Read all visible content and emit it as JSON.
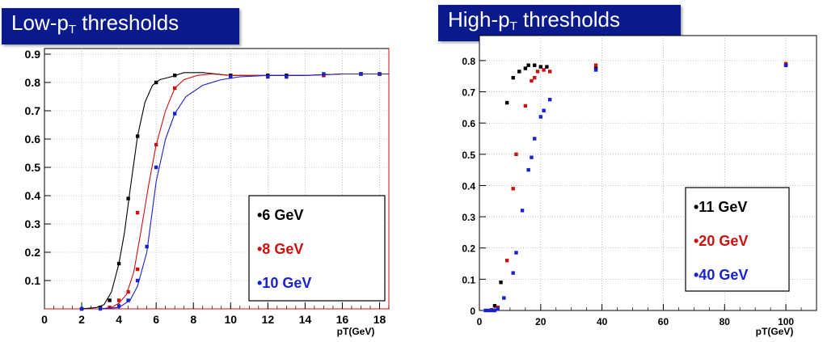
{
  "colors": {
    "title_bg": "#0a1a8c",
    "black": "#000000",
    "red": "#cc1111",
    "blue": "#1a22cc"
  },
  "chart_data": [
    {
      "type": "line",
      "title_main": "Low-p",
      "title_sub": "T",
      "title_rest": " thresholds",
      "xlabel": "pT(GeV)",
      "ylabel": "",
      "xlim": [
        0,
        18.5
      ],
      "ylim": [
        0,
        0.92
      ],
      "xticks": [
        "0",
        "2",
        "4",
        "6",
        "8",
        "10",
        "12",
        "14",
        "16",
        "18"
      ],
      "yticks": [
        "0.1",
        "0.2",
        "0.3",
        "0.4",
        "0.5",
        "0.6",
        "0.7",
        "0.8",
        "0.9"
      ],
      "grid": true,
      "legend_position": "right-middle",
      "series": [
        {
          "name": "•6 GeV",
          "color": "#000000",
          "points": [
            [
              2,
              0
            ],
            [
              3,
              0.005
            ],
            [
              3.5,
              0.03
            ],
            [
              4,
              0.16
            ],
            [
              4.5,
              0.39
            ],
            [
              5,
              0.61
            ],
            [
              6,
              0.8
            ],
            [
              7,
              0.825
            ],
            [
              10,
              0.825
            ],
            [
              12,
              0.825
            ],
            [
              13,
              0.825
            ],
            [
              15,
              0.825
            ],
            [
              17,
              0.83
            ],
            [
              18,
              0.83
            ]
          ],
          "curve": [
            [
              2,
              0
            ],
            [
              2.8,
              0.005
            ],
            [
              3.2,
              0.015
            ],
            [
              3.6,
              0.06
            ],
            [
              4,
              0.16
            ],
            [
              4.3,
              0.27
            ],
            [
              4.6,
              0.42
            ],
            [
              5,
              0.61
            ],
            [
              5.4,
              0.73
            ],
            [
              5.8,
              0.79
            ],
            [
              6.2,
              0.81
            ],
            [
              6.8,
              0.82
            ],
            [
              7.5,
              0.835
            ],
            [
              8.5,
              0.835
            ],
            [
              10,
              0.825
            ],
            [
              12,
              0.825
            ],
            [
              14,
              0.825
            ],
            [
              16,
              0.83
            ],
            [
              18.5,
              0.83
            ]
          ]
        },
        {
          "name": "•8 GeV",
          "color": "#cc1111",
          "points": [
            [
              3.5,
              0.005
            ],
            [
              4,
              0.03
            ],
            [
              4.5,
              0.06
            ],
            [
              5,
              0.14
            ],
            [
              5,
              0.34
            ],
            [
              6,
              0.58
            ],
            [
              7,
              0.78
            ],
            [
              10,
              0.82
            ],
            [
              12,
              0.82
            ],
            [
              13,
              0.82
            ],
            [
              15,
              0.825
            ],
            [
              17,
              0.83
            ],
            [
              18,
              0.83
            ]
          ],
          "curve": [
            [
              3,
              0
            ],
            [
              3.6,
              0.005
            ],
            [
              4,
              0.02
            ],
            [
              4.4,
              0.05
            ],
            [
              4.8,
              0.13
            ],
            [
              5.2,
              0.28
            ],
            [
              5.6,
              0.44
            ],
            [
              6,
              0.58
            ],
            [
              6.5,
              0.7
            ],
            [
              7,
              0.78
            ],
            [
              7.5,
              0.81
            ],
            [
              8.2,
              0.825
            ],
            [
              9,
              0.83
            ],
            [
              10,
              0.825
            ],
            [
              12,
              0.825
            ],
            [
              14,
              0.825
            ],
            [
              16,
              0.83
            ],
            [
              18.5,
              0.83
            ]
          ]
        },
        {
          "name": "•10 GeV",
          "color": "#1a22cc",
          "points": [
            [
              2,
              0
            ],
            [
              3,
              0
            ],
            [
              4,
              0.01
            ],
            [
              4.5,
              0.03
            ],
            [
              5,
              0.1
            ],
            [
              5.5,
              0.22
            ],
            [
              6,
              0.5
            ],
            [
              7,
              0.69
            ],
            [
              10,
              0.82
            ],
            [
              12,
              0.82
            ],
            [
              13,
              0.82
            ],
            [
              15,
              0.83
            ],
            [
              17,
              0.83
            ],
            [
              18,
              0.83
            ]
          ],
          "curve": [
            [
              3,
              0
            ],
            [
              4,
              0.005
            ],
            [
              4.6,
              0.03
            ],
            [
              5,
              0.08
            ],
            [
              5.5,
              0.2
            ],
            [
              6,
              0.45
            ],
            [
              6.5,
              0.6
            ],
            [
              7,
              0.69
            ],
            [
              7.6,
              0.75
            ],
            [
              8.5,
              0.79
            ],
            [
              9.5,
              0.81
            ],
            [
              10.5,
              0.82
            ],
            [
              12,
              0.825
            ],
            [
              14,
              0.825
            ],
            [
              16,
              0.83
            ],
            [
              18.5,
              0.83
            ]
          ]
        }
      ]
    },
    {
      "type": "scatter",
      "title_main": "High-p",
      "title_sub": "T",
      "title_rest": " thresholds",
      "xlabel": "pT(GeV)",
      "ylabel": "",
      "xlim": [
        0,
        110
      ],
      "ylim": [
        0,
        0.88
      ],
      "xticks": [
        "0",
        "20",
        "40",
        "60",
        "80",
        "100"
      ],
      "yticks": [
        "0",
        "0.1",
        "0.2",
        "0.3",
        "0.4",
        "0.5",
        "0.6",
        "0.7",
        "0.8"
      ],
      "grid": true,
      "legend_position": "right-middle",
      "series": [
        {
          "name": "•11 GeV",
          "color": "#000000",
          "points": [
            [
              5,
              0.015
            ],
            [
              7,
              0.09
            ],
            [
              9,
              0.665
            ],
            [
              11,
              0.745
            ],
            [
              13,
              0.765
            ],
            [
              15,
              0.775
            ],
            [
              16,
              0.785
            ],
            [
              18,
              0.785
            ],
            [
              20,
              0.78
            ],
            [
              22,
              0.78
            ],
            [
              38,
              0.775
            ],
            [
              100,
              0.785
            ]
          ]
        },
        {
          "name": "•20 GeV",
          "color": "#cc1111",
          "points": [
            [
              4,
              0.002
            ],
            [
              6,
              0.01
            ],
            [
              9,
              0.16
            ],
            [
              11,
              0.39
            ],
            [
              12,
              0.5
            ],
            [
              15,
              0.655
            ],
            [
              17,
              0.735
            ],
            [
              18,
              0.745
            ],
            [
              19,
              0.765
            ],
            [
              21,
              0.77
            ],
            [
              23,
              0.765
            ],
            [
              38,
              0.785
            ],
            [
              100,
              0.79
            ]
          ]
        },
        {
          "name": "•40 GeV",
          "color": "#1a22cc",
          "points": [
            [
              2,
              0
            ],
            [
              3,
              0
            ],
            [
              4,
              0
            ],
            [
              5,
              0
            ],
            [
              6,
              0.005
            ],
            [
              8,
              0.04
            ],
            [
              11,
              0.12
            ],
            [
              12,
              0.185
            ],
            [
              14,
              0.32
            ],
            [
              16,
              0.45
            ],
            [
              17,
              0.49
            ],
            [
              18,
              0.55
            ],
            [
              20,
              0.62
            ],
            [
              21,
              0.64
            ],
            [
              23,
              0.675
            ],
            [
              38,
              0.77
            ],
            [
              100,
              0.785
            ]
          ]
        }
      ]
    }
  ]
}
